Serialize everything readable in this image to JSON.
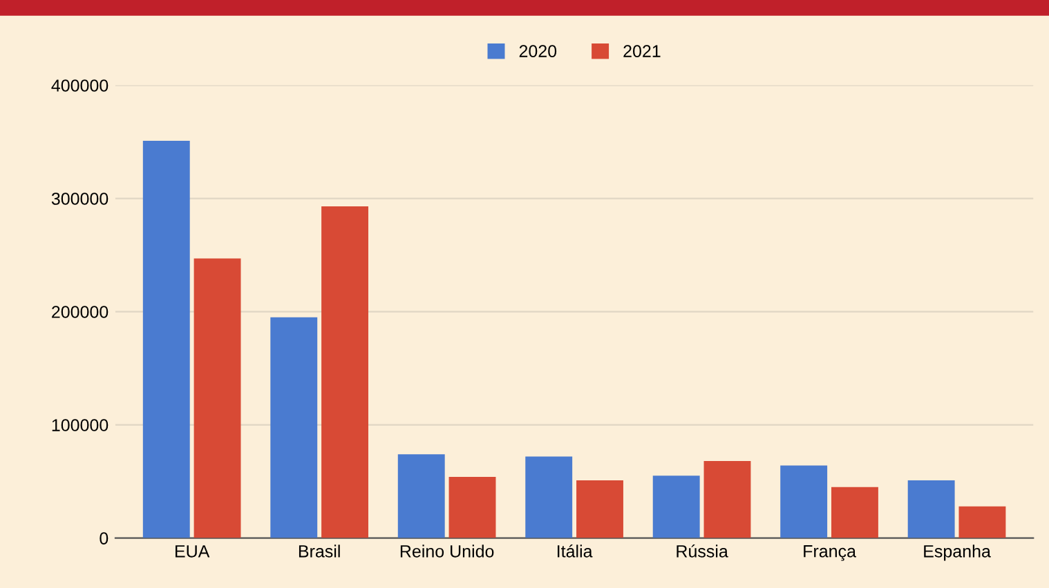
{
  "chart_data": {
    "type": "bar",
    "categories": [
      "EUA",
      "Brasil",
      "Reino Unido",
      "Itália",
      "Rússia",
      "França",
      "Espanha"
    ],
    "series": [
      {
        "name": "2020",
        "color": "#4a7bd0",
        "values": [
          351000,
          195000,
          74000,
          72000,
          55000,
          64000,
          51000
        ]
      },
      {
        "name": "2021",
        "color": "#d84a35",
        "values": [
          247000,
          293000,
          54000,
          51000,
          68000,
          45000,
          28000
        ]
      }
    ],
    "ylim": [
      0,
      400000
    ],
    "yticks": [
      0,
      100000,
      200000,
      300000,
      400000
    ],
    "grid": "y",
    "legend": "top"
  }
}
